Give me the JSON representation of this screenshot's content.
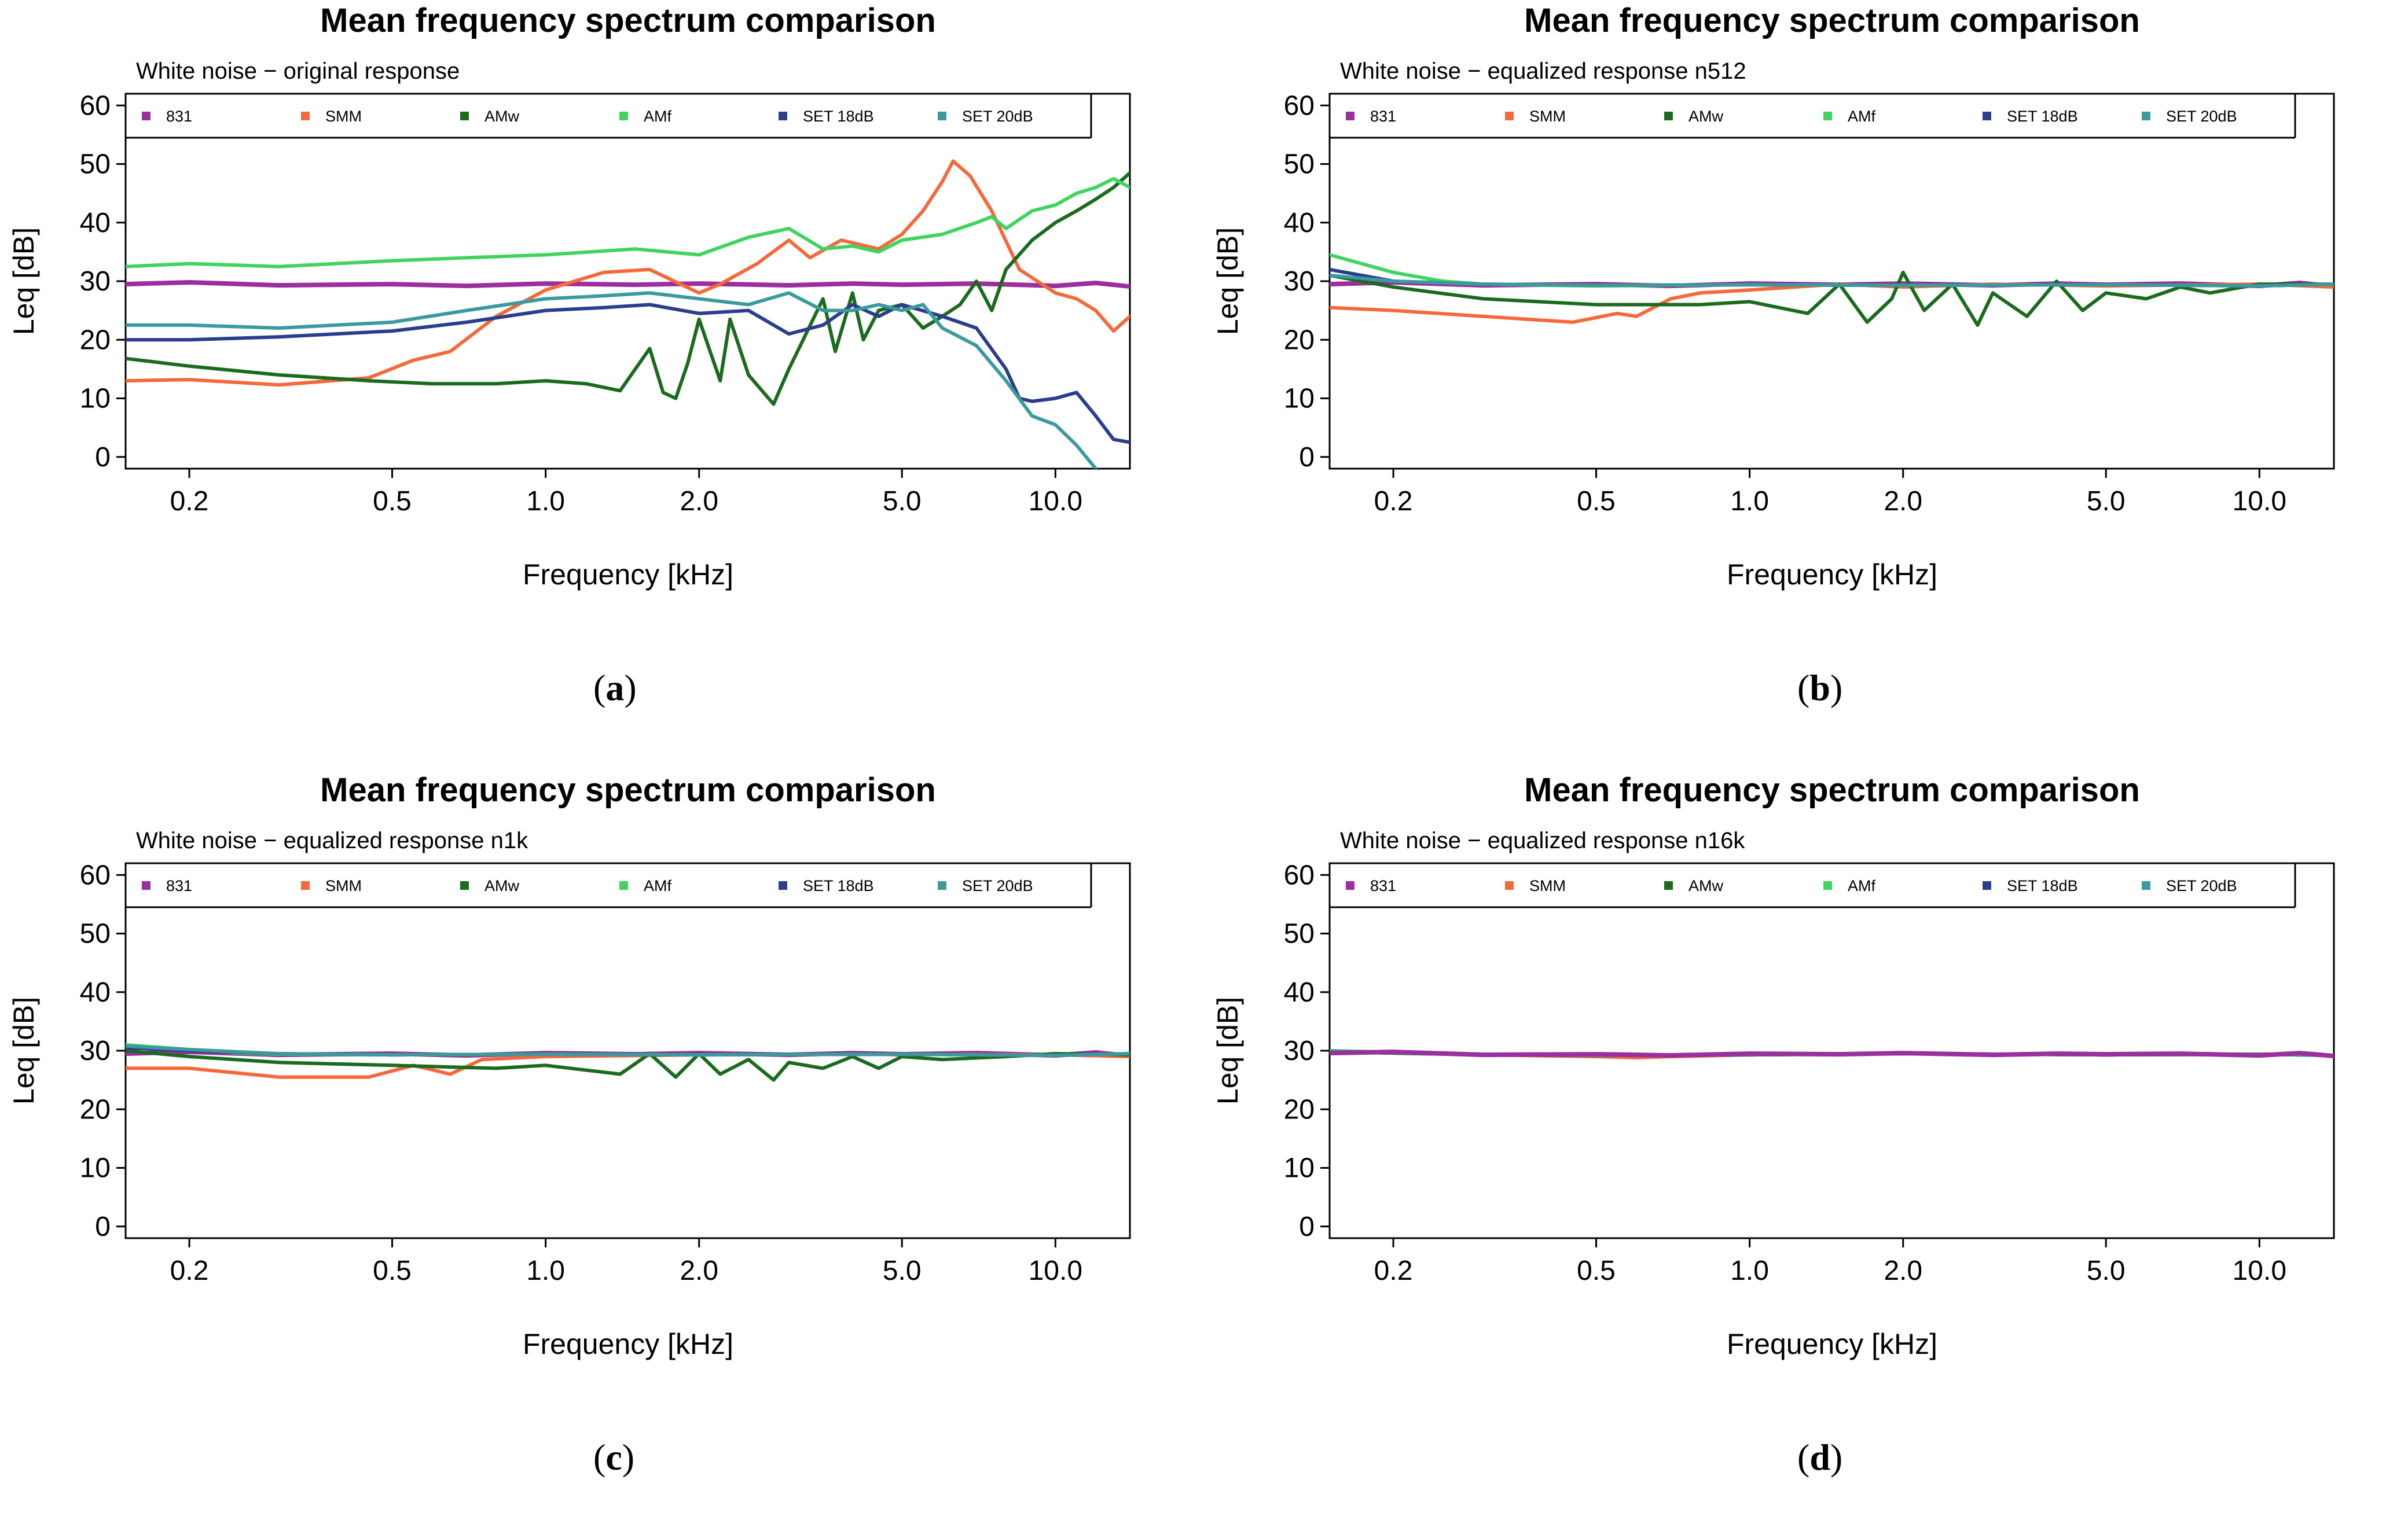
{
  "legend": [
    {
      "label": "831",
      "color": "#9b2f9e"
    },
    {
      "label": "SMM",
      "color": "#f4693b"
    },
    {
      "label": "AMw",
      "color": "#1a6b1e"
    },
    {
      "label": "AMf",
      "color": "#3fd45e"
    },
    {
      "label": "SET 18dB",
      "color": "#2b3d8c"
    },
    {
      "label": "SET 20dB",
      "color": "#3b9a9e"
    }
  ],
  "panels": [
    {
      "caption_open": "(",
      "caption_letter": "a",
      "caption_close": ")",
      "title": "Mean frequency spectrum comparison",
      "subtitle": "White noise − original response"
    },
    {
      "caption_open": "(",
      "caption_letter": "b",
      "caption_close": ")",
      "title": "Mean frequency spectrum comparison",
      "subtitle": "White noise − equalized response n512"
    },
    {
      "caption_open": "(",
      "caption_letter": "c",
      "caption_close": ")",
      "title": "Mean frequency spectrum comparison",
      "subtitle": "White noise − equalized response n1k"
    },
    {
      "caption_open": "(",
      "caption_letter": "d",
      "caption_close": ")",
      "title": "Mean frequency spectrum comparison",
      "subtitle": "White noise − equalized response n16k"
    }
  ],
  "chart_data": [
    {
      "type": "line",
      "title": "Mean frequency spectrum comparison",
      "subtitle": "White noise − original response",
      "xlabel": "Frequency [kHz]",
      "ylabel": "Leq [dB]",
      "xscale": "log",
      "xlim": [
        0.15,
        14
      ],
      "ylim": [
        -2,
        62
      ],
      "xticks": [
        0.2,
        0.5,
        1.0,
        2.0,
        5.0,
        10.0
      ],
      "xtick_labels": [
        "0.2",
        "0.5",
        "1.0",
        "2.0",
        "5.0",
        "10.0"
      ],
      "yticks": [
        0,
        10,
        20,
        30,
        40,
        50,
        60
      ],
      "ytick_labels": [
        "0",
        "10",
        "20",
        "30",
        "40",
        "50",
        "60"
      ],
      "legend_position": "top",
      "series": [
        {
          "name": "831",
          "x": [
            0.15,
            0.2,
            0.3,
            0.5,
            0.7,
            1.0,
            1.5,
            2.0,
            3.0,
            4.0,
            5.0,
            7.0,
            10.0,
            12.0,
            14.0
          ],
          "y": [
            29.5,
            29.8,
            29.3,
            29.5,
            29.2,
            29.6,
            29.4,
            29.6,
            29.3,
            29.6,
            29.4,
            29.6,
            29.2,
            29.7,
            29.1
          ]
        },
        {
          "name": "SMM",
          "x": [
            0.15,
            0.2,
            0.3,
            0.45,
            0.55,
            0.65,
            0.8,
            1.0,
            1.3,
            1.6,
            2.0,
            2.2,
            2.6,
            3.0,
            3.3,
            3.8,
            4.5,
            5.0,
            5.5,
            6.0,
            6.3,
            6.8,
            7.5,
            8.5,
            10.0,
            11.0,
            12.0,
            13.0,
            14.0
          ],
          "y": [
            13,
            13.2,
            12.3,
            13.5,
            16.5,
            18,
            24,
            28.5,
            31.5,
            32,
            28,
            29.5,
            33,
            37,
            34,
            37,
            35.5,
            38,
            42,
            47,
            50.5,
            48,
            42,
            32,
            28,
            27,
            25,
            21.5,
            24
          ]
        },
        {
          "name": "AMw",
          "x": [
            0.15,
            0.2,
            0.3,
            0.45,
            0.6,
            0.8,
            1.0,
            1.2,
            1.4,
            1.6,
            1.7,
            1.8,
            1.9,
            2.0,
            2.2,
            2.3,
            2.5,
            2.8,
            3.0,
            3.2,
            3.5,
            3.7,
            4.0,
            4.2,
            4.5,
            5.0,
            5.5,
            6.0,
            6.5,
            7.0,
            7.5,
            8.0,
            9.0,
            10.0,
            11.0,
            12.0,
            13.0,
            14.0
          ],
          "y": [
            16.8,
            15.5,
            14,
            13,
            12.5,
            12.5,
            13,
            12.5,
            11.3,
            18.5,
            11,
            10,
            16,
            23.5,
            13,
            23.5,
            14,
            9,
            15,
            20,
            27,
            18,
            28,
            20,
            25,
            26,
            22,
            24,
            26,
            30,
            25,
            32,
            37,
            40,
            42,
            44,
            46,
            48.5
          ]
        },
        {
          "name": "AMf",
          "x": [
            0.15,
            0.2,
            0.3,
            0.5,
            0.7,
            1.0,
            1.5,
            2.0,
            2.5,
            3.0,
            3.5,
            4.0,
            4.5,
            5.0,
            6.0,
            7.0,
            7.5,
            8.0,
            9.0,
            10.0,
            11.0,
            12.0,
            13.0,
            14.0
          ],
          "y": [
            32.5,
            33,
            32.5,
            33.5,
            34,
            34.5,
            35.5,
            34.5,
            37.5,
            39,
            35.5,
            36,
            35,
            37,
            38,
            40,
            41,
            39,
            42,
            43,
            45,
            46,
            47.5,
            46
          ]
        },
        {
          "name": "SET 18dB",
          "x": [
            0.15,
            0.2,
            0.3,
            0.5,
            0.7,
            1.0,
            1.3,
            1.6,
            2.0,
            2.5,
            3.0,
            3.5,
            4.0,
            4.5,
            5.0,
            6.0,
            7.0,
            8.0,
            8.5,
            9.0,
            10.0,
            11.0,
            12.0,
            13.0,
            14.0
          ],
          "y": [
            20,
            20,
            20.5,
            21.5,
            23,
            25,
            25.5,
            26,
            24.5,
            25,
            21,
            22.5,
            26,
            24,
            26,
            24,
            22,
            15,
            10,
            9.5,
            10,
            11,
            7,
            3,
            2.5
          ]
        },
        {
          "name": "SET 20dB",
          "x": [
            0.15,
            0.2,
            0.3,
            0.5,
            0.7,
            1.0,
            1.3,
            1.6,
            2.0,
            2.5,
            3.0,
            3.5,
            4.0,
            4.5,
            5.0,
            5.5,
            6.0,
            7.0,
            8.0,
            9.0,
            10.0,
            11.0,
            12.0
          ],
          "y": [
            22.5,
            22.5,
            22,
            23,
            25,
            27,
            27.5,
            28,
            27,
            26,
            28,
            25,
            25,
            26,
            25,
            26,
            22,
            19,
            13,
            7,
            5.5,
            2,
            -2
          ]
        }
      ]
    },
    {
      "type": "line",
      "title": "Mean frequency spectrum comparison",
      "subtitle": "White noise − equalized response n512",
      "xlabel": "Frequency [kHz]",
      "ylabel": "Leq [dB]",
      "xscale": "log",
      "xlim": [
        0.15,
        14
      ],
      "ylim": [
        -2,
        62
      ],
      "xticks": [
        0.2,
        0.5,
        1.0,
        2.0,
        5.0,
        10.0
      ],
      "xtick_labels": [
        "0.2",
        "0.5",
        "1.0",
        "2.0",
        "5.0",
        "10.0"
      ],
      "yticks": [
        0,
        10,
        20,
        30,
        40,
        50,
        60
      ],
      "ytick_labels": [
        "0",
        "10",
        "20",
        "30",
        "40",
        "50",
        "60"
      ],
      "legend_position": "top",
      "series": [
        {
          "name": "831",
          "x": [
            0.15,
            0.2,
            0.3,
            0.5,
            0.7,
            1.0,
            1.5,
            2.0,
            3.0,
            4.0,
            5.0,
            7.0,
            10.0,
            12.0,
            14.0
          ],
          "y": [
            29.5,
            29.8,
            29.3,
            29.5,
            29.2,
            29.6,
            29.4,
            29.6,
            29.3,
            29.6,
            29.4,
            29.6,
            29.2,
            29.7,
            29.1
          ]
        },
        {
          "name": "SMM",
          "x": [
            0.15,
            0.2,
            0.3,
            0.45,
            0.55,
            0.6,
            0.7,
            0.8,
            1.0,
            1.5,
            2.0,
            3.0,
            5.0,
            10.0,
            14.0
          ],
          "y": [
            25.5,
            25,
            24,
            23,
            24.5,
            24,
            27,
            28,
            28.5,
            29.5,
            29,
            29.5,
            29.2,
            29.5,
            29
          ]
        },
        {
          "name": "AMw",
          "x": [
            0.15,
            0.2,
            0.3,
            0.5,
            0.8,
            1.0,
            1.3,
            1.5,
            1.7,
            1.9,
            2.0,
            2.2,
            2.5,
            2.8,
            3.0,
            3.5,
            4.0,
            4.5,
            5.0,
            6.0,
            7.0,
            8.0,
            10.0,
            14.0
          ],
          "y": [
            31,
            29,
            27,
            26,
            26,
            26.5,
            24.5,
            29.5,
            23,
            27,
            31.5,
            25,
            29.5,
            22.5,
            28,
            24,
            30,
            25,
            28,
            27,
            29,
            28,
            29.5,
            29.5
          ]
        },
        {
          "name": "AMf",
          "x": [
            0.15,
            0.2,
            0.25,
            0.3,
            0.4,
            0.5,
            1.0,
            2.0,
            5.0,
            10.0,
            14.0
          ],
          "y": [
            34.5,
            31.5,
            30,
            29.5,
            29.3,
            29.2,
            29.4,
            29.3,
            29.4,
            29.2,
            29.5
          ]
        },
        {
          "name": "SET 18dB",
          "x": [
            0.15,
            0.2,
            0.3,
            0.5,
            1.0,
            2.0,
            5.0,
            10.0,
            14.0
          ],
          "y": [
            32,
            30,
            29.5,
            29.3,
            29.4,
            29.3,
            29.4,
            29.2,
            29.5
          ]
        },
        {
          "name": "SET 20dB",
          "x": [
            0.15,
            0.2,
            0.3,
            0.5,
            1.0,
            2.0,
            5.0,
            10.0,
            14.0
          ],
          "y": [
            31,
            30,
            29.5,
            29.3,
            29.4,
            29.3,
            29.4,
            29.2,
            29.5
          ]
        }
      ]
    },
    {
      "type": "line",
      "title": "Mean frequency spectrum comparison",
      "subtitle": "White noise − equalized response n1k",
      "xlabel": "Frequency [kHz]",
      "ylabel": "Leq [dB]",
      "xscale": "log",
      "xlim": [
        0.15,
        14
      ],
      "ylim": [
        -2,
        62
      ],
      "xticks": [
        0.2,
        0.5,
        1.0,
        2.0,
        5.0,
        10.0
      ],
      "xtick_labels": [
        "0.2",
        "0.5",
        "1.0",
        "2.0",
        "5.0",
        "10.0"
      ],
      "yticks": [
        0,
        10,
        20,
        30,
        40,
        50,
        60
      ],
      "ytick_labels": [
        "0",
        "10",
        "20",
        "30",
        "40",
        "50",
        "60"
      ],
      "legend_position": "top",
      "series": [
        {
          "name": "831",
          "x": [
            0.15,
            0.2,
            0.3,
            0.5,
            0.7,
            1.0,
            1.5,
            2.0,
            3.0,
            4.0,
            5.0,
            7.0,
            10.0,
            12.0,
            14.0
          ],
          "y": [
            29.5,
            29.8,
            29.3,
            29.5,
            29.2,
            29.6,
            29.4,
            29.6,
            29.3,
            29.6,
            29.4,
            29.6,
            29.2,
            29.7,
            29.1
          ]
        },
        {
          "name": "SMM",
          "x": [
            0.15,
            0.2,
            0.3,
            0.45,
            0.55,
            0.65,
            0.75,
            1.0,
            2.0,
            5.0,
            10.0,
            14.0
          ],
          "y": [
            27,
            27,
            25.5,
            25.5,
            27.5,
            26,
            28.5,
            29,
            29.3,
            29.4,
            29.3,
            29
          ]
        },
        {
          "name": "AMw",
          "x": [
            0.15,
            0.2,
            0.3,
            0.5,
            0.8,
            1.0,
            1.4,
            1.6,
            1.8,
            2.0,
            2.2,
            2.5,
            2.8,
            3.0,
            3.5,
            4.0,
            4.5,
            5.0,
            6.0,
            8.0,
            10.0,
            14.0
          ],
          "y": [
            30,
            29,
            28,
            27.5,
            27,
            27.5,
            26,
            29.5,
            25.5,
            29.5,
            26,
            28.5,
            25,
            28,
            27,
            29,
            27,
            29,
            28.5,
            29,
            29.5,
            29.3
          ]
        },
        {
          "name": "AMf",
          "x": [
            0.15,
            0.2,
            0.25,
            0.3,
            0.5,
            1.0,
            2.0,
            5.0,
            10.0,
            14.0
          ],
          "y": [
            31,
            30.2,
            29.6,
            29.4,
            29.3,
            29.4,
            29.3,
            29.4,
            29.2,
            29.5
          ]
        },
        {
          "name": "SET 18dB",
          "x": [
            0.15,
            0.2,
            0.3,
            0.5,
            1.0,
            2.0,
            5.0,
            10.0,
            14.0
          ],
          "y": [
            30.5,
            30,
            29.5,
            29.3,
            29.4,
            29.3,
            29.4,
            29.2,
            29.5
          ]
        },
        {
          "name": "SET 20dB",
          "x": [
            0.15,
            0.2,
            0.3,
            0.5,
            1.0,
            2.0,
            5.0,
            10.0,
            14.0
          ],
          "y": [
            30.8,
            30.2,
            29.5,
            29.3,
            29.4,
            29.3,
            29.4,
            29.2,
            29.5
          ]
        }
      ]
    },
    {
      "type": "line",
      "title": "Mean frequency spectrum comparison",
      "subtitle": "White noise − equalized response n16k",
      "xlabel": "Frequency [kHz]",
      "ylabel": "Leq [dB]",
      "xscale": "log",
      "xlim": [
        0.15,
        14
      ],
      "ylim": [
        -2,
        62
      ],
      "xticks": [
        0.2,
        0.5,
        1.0,
        2.0,
        5.0,
        10.0
      ],
      "xtick_labels": [
        "0.2",
        "0.5",
        "1.0",
        "2.0",
        "5.0",
        "10.0"
      ],
      "yticks": [
        0,
        10,
        20,
        30,
        40,
        50,
        60
      ],
      "ytick_labels": [
        "0",
        "10",
        "20",
        "30",
        "40",
        "50",
        "60"
      ],
      "legend_position": "top",
      "series": [
        {
          "name": "SMM",
          "x": [
            0.15,
            0.3,
            0.5,
            0.6,
            0.7,
            1.0,
            2.0,
            5.0,
            10.0,
            14.0
          ],
          "y": [
            29.8,
            29.3,
            29,
            28.8,
            29,
            29.3,
            29.5,
            29.3,
            29.4,
            29.2
          ]
        },
        {
          "name": "AMw",
          "x": [
            0.15,
            0.3,
            0.5,
            1.0,
            2.0,
            5.0,
            10.0,
            14.0
          ],
          "y": [
            29.8,
            29.3,
            29.2,
            29.3,
            29.5,
            29.3,
            29.4,
            29.2
          ]
        },
        {
          "name": "AMf",
          "x": [
            0.15,
            0.3,
            0.5,
            1.0,
            2.0,
            5.0,
            10.0,
            14.0
          ],
          "y": [
            30,
            29.4,
            29.3,
            29.3,
            29.5,
            29.3,
            29.4,
            29.2
          ]
        },
        {
          "name": "SET 18dB",
          "x": [
            0.15,
            0.3,
            0.5,
            1.0,
            2.0,
            5.0,
            10.0,
            14.0
          ],
          "y": [
            29.9,
            29.3,
            29.2,
            29.3,
            29.5,
            29.3,
            29.4,
            29.2
          ]
        },
        {
          "name": "SET 20dB",
          "x": [
            0.15,
            0.3,
            0.5,
            1.0,
            2.0,
            5.0,
            10.0,
            14.0
          ],
          "y": [
            29.9,
            29.3,
            29.2,
            29.3,
            29.5,
            29.3,
            29.4,
            29.2
          ]
        },
        {
          "name": "831",
          "x": [
            0.15,
            0.2,
            0.3,
            0.5,
            0.7,
            1.0,
            1.5,
            2.0,
            3.0,
            4.0,
            5.0,
            7.0,
            10.0,
            12.0,
            14.0
          ],
          "y": [
            29.6,
            29.8,
            29.3,
            29.4,
            29.2,
            29.5,
            29.4,
            29.6,
            29.3,
            29.5,
            29.4,
            29.5,
            29.2,
            29.6,
            29.1
          ]
        }
      ]
    }
  ]
}
